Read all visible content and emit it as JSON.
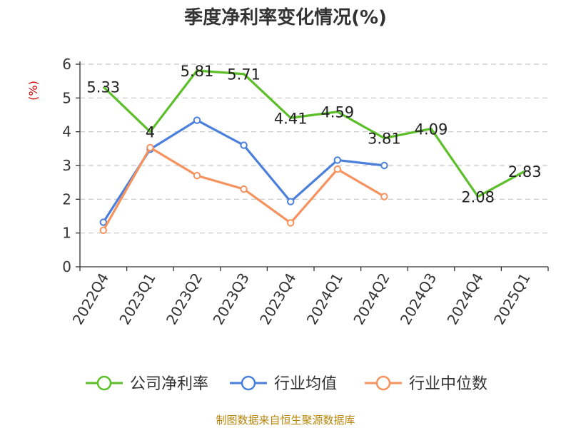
{
  "chart_data": {
    "type": "line",
    "title": "季度净利率变化情况(%)",
    "ylabel": "(%)",
    "categories": [
      "2022Q4",
      "2023Q1",
      "2023Q2",
      "2023Q3",
      "2023Q4",
      "2024Q1",
      "2024Q2",
      "2024Q3",
      "2024Q4",
      "2025Q1"
    ],
    "ylim": [
      0,
      6
    ],
    "yticks": [
      0,
      1,
      2,
      3,
      4,
      5,
      6
    ],
    "grid": true,
    "legend_position": "bottom",
    "series": [
      {
        "name": "公司净利率",
        "color": "#5cbf2a",
        "values": [
          5.33,
          4,
          5.81,
          5.71,
          4.41,
          4.59,
          3.81,
          4.09,
          2.08,
          2.83
        ],
        "labels": [
          "5.33",
          "4",
          "5.81",
          "5.71",
          "4.41",
          "4.59",
          "3.81",
          "4.09",
          "2.08",
          "2.83"
        ],
        "show_markers": false
      },
      {
        "name": "行业均值",
        "color": "#4a7fdc",
        "values": [
          1.32,
          3.48,
          4.34,
          3.6,
          1.93,
          3.16,
          3.0,
          null,
          null,
          null
        ],
        "show_markers": true
      },
      {
        "name": "行业中位数",
        "color": "#f5925e",
        "values": [
          1.08,
          3.53,
          2.7,
          2.3,
          1.3,
          2.89,
          2.08,
          null,
          null,
          null
        ],
        "show_markers": true
      }
    ]
  },
  "footer": {
    "source": "制图数据来自恒生聚源数据库"
  }
}
